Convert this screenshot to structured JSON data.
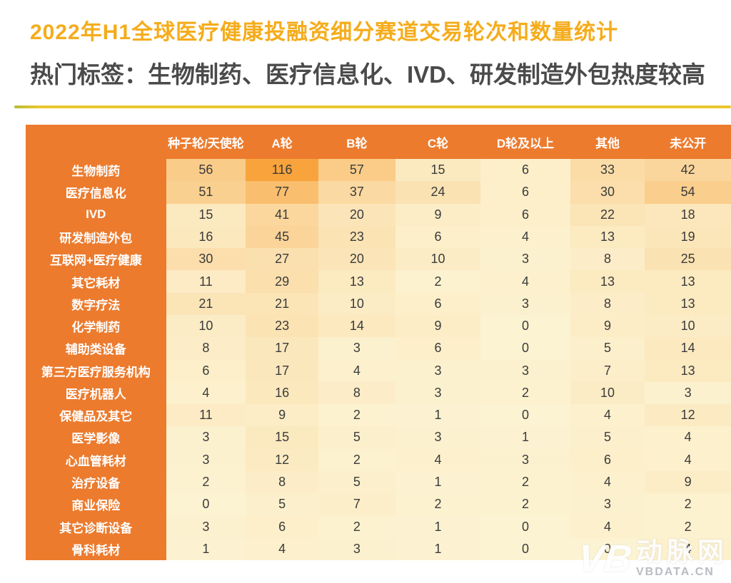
{
  "page": {
    "colors": {
      "table_header": "#EC7B2E",
      "title": "#F5AC1B",
      "subtitle": "#4A4A4A",
      "divider": "#EAC72E",
      "value_text": "#3B3B3B",
      "watermark_gray": "#B9BDC2"
    }
  },
  "chart_data": {
    "type": "heatmap",
    "title": "2022年H1全球医疗健康投融资细分赛道交易轮次和数量统计",
    "subtitle": "热门标签：生物制药、医疗信息化、IVD、研发制造外包热度较高",
    "columns": [
      "种子轮/天使轮",
      "A轮",
      "B轮",
      "C轮",
      "D轮及以上",
      "其他",
      "未公开"
    ],
    "rows": [
      {
        "label": "生物制药",
        "values": [
          56,
          116,
          57,
          15,
          6,
          33,
          42
        ]
      },
      {
        "label": "医疗信息化",
        "values": [
          51,
          77,
          37,
          24,
          6,
          30,
          54
        ]
      },
      {
        "label": "IVD",
        "values": [
          15,
          41,
          20,
          9,
          6,
          22,
          18
        ]
      },
      {
        "label": "研发制造外包",
        "values": [
          16,
          45,
          23,
          6,
          4,
          13,
          19
        ]
      },
      {
        "label": "互联网+医疗健康",
        "values": [
          30,
          27,
          20,
          10,
          3,
          8,
          25
        ]
      },
      {
        "label": "其它耗材",
        "values": [
          11,
          29,
          13,
          2,
          4,
          13,
          13
        ]
      },
      {
        "label": "数字疗法",
        "values": [
          21,
          21,
          10,
          6,
          3,
          8,
          13
        ]
      },
      {
        "label": "化学制药",
        "values": [
          10,
          23,
          14,
          9,
          0,
          9,
          10
        ]
      },
      {
        "label": "辅助类设备",
        "values": [
          8,
          17,
          3,
          6,
          0,
          5,
          14
        ]
      },
      {
        "label": "第三方医疗服务机构",
        "values": [
          6,
          17,
          4,
          3,
          3,
          7,
          13
        ]
      },
      {
        "label": "医疗机器人",
        "values": [
          4,
          16,
          8,
          3,
          2,
          10,
          3
        ]
      },
      {
        "label": "保健品及其它",
        "values": [
          11,
          9,
          2,
          1,
          0,
          4,
          12
        ]
      },
      {
        "label": "医学影像",
        "values": [
          3,
          15,
          5,
          3,
          1,
          5,
          4
        ]
      },
      {
        "label": "心血管耗材",
        "values": [
          3,
          12,
          2,
          4,
          3,
          6,
          4
        ]
      },
      {
        "label": "治疗设备",
        "values": [
          2,
          8,
          5,
          1,
          2,
          4,
          9
        ]
      },
      {
        "label": "商业保险",
        "values": [
          0,
          5,
          7,
          2,
          2,
          3,
          2
        ]
      },
      {
        "label": "其它诊断设备",
        "values": [
          3,
          6,
          2,
          1,
          0,
          4,
          2
        ]
      },
      {
        "label": "骨科耗材",
        "values": [
          1,
          4,
          3,
          1,
          0,
          0,
          4
        ]
      }
    ],
    "heatmap": {
      "min": 0,
      "max": 116,
      "color_low": "#FCF3D2",
      "color_high": "#F8A33C",
      "legend": "off",
      "grid": "off"
    }
  },
  "watermark": {
    "monogram": "VB",
    "name": "动脉网",
    "domain": "VBDATA.CN"
  }
}
